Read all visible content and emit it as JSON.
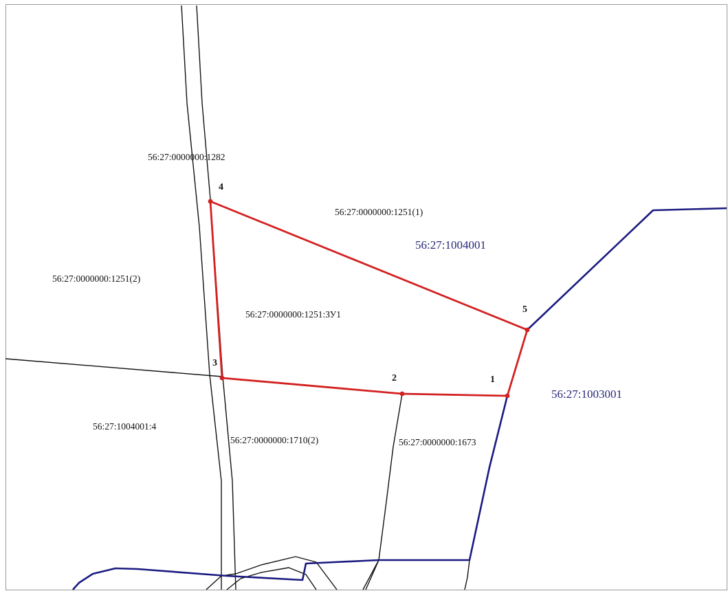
{
  "parcel_labels": {
    "road_1282": "56:27:0000000:1282",
    "parcel_1251_1": "56:27:0000000:1251(1)",
    "parcel_1251_2": "56:27:0000000:1251(2)",
    "parcel_zu1": "56:27:0000000:1251:ЗУ1",
    "parcel_1004001_4": "56:27:1004001:4",
    "parcel_1710_2": "56:27:0000000:1710(2)",
    "parcel_1673": "56:27:0000000:1673"
  },
  "quarter_labels": {
    "q_1004001": "56:27:1004001",
    "q_1003001": "56:27:1003001"
  },
  "points": [
    {
      "number": "1"
    },
    {
      "number": "2"
    },
    {
      "number": "3"
    },
    {
      "number": "4"
    },
    {
      "number": "5"
    }
  ],
  "colors": {
    "parcel_boundary": "#d42020",
    "quarter_boundary": "#1a1a80",
    "parcel_line": "#111111",
    "quarter_label": "#27277a"
  }
}
